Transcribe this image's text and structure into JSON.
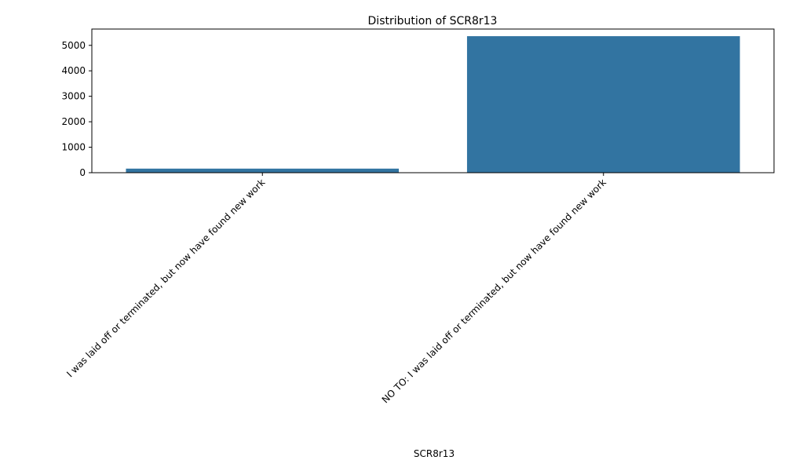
{
  "chart_data": {
    "type": "bar",
    "title": "Distribution of SCR8r13",
    "xlabel": "SCR8r13",
    "ylabel": "",
    "categories": [
      "I was laid off or terminated, but now have found new work",
      "NO TO: I was laid off or terminated, but now have found new work"
    ],
    "values": [
      160,
      5360
    ],
    "ylim": [
      0,
      5640
    ],
    "yticks": [
      0,
      1000,
      2000,
      3000,
      4000,
      5000
    ],
    "bar_color": "#3274a1",
    "grid": false,
    "legend": "none"
  }
}
